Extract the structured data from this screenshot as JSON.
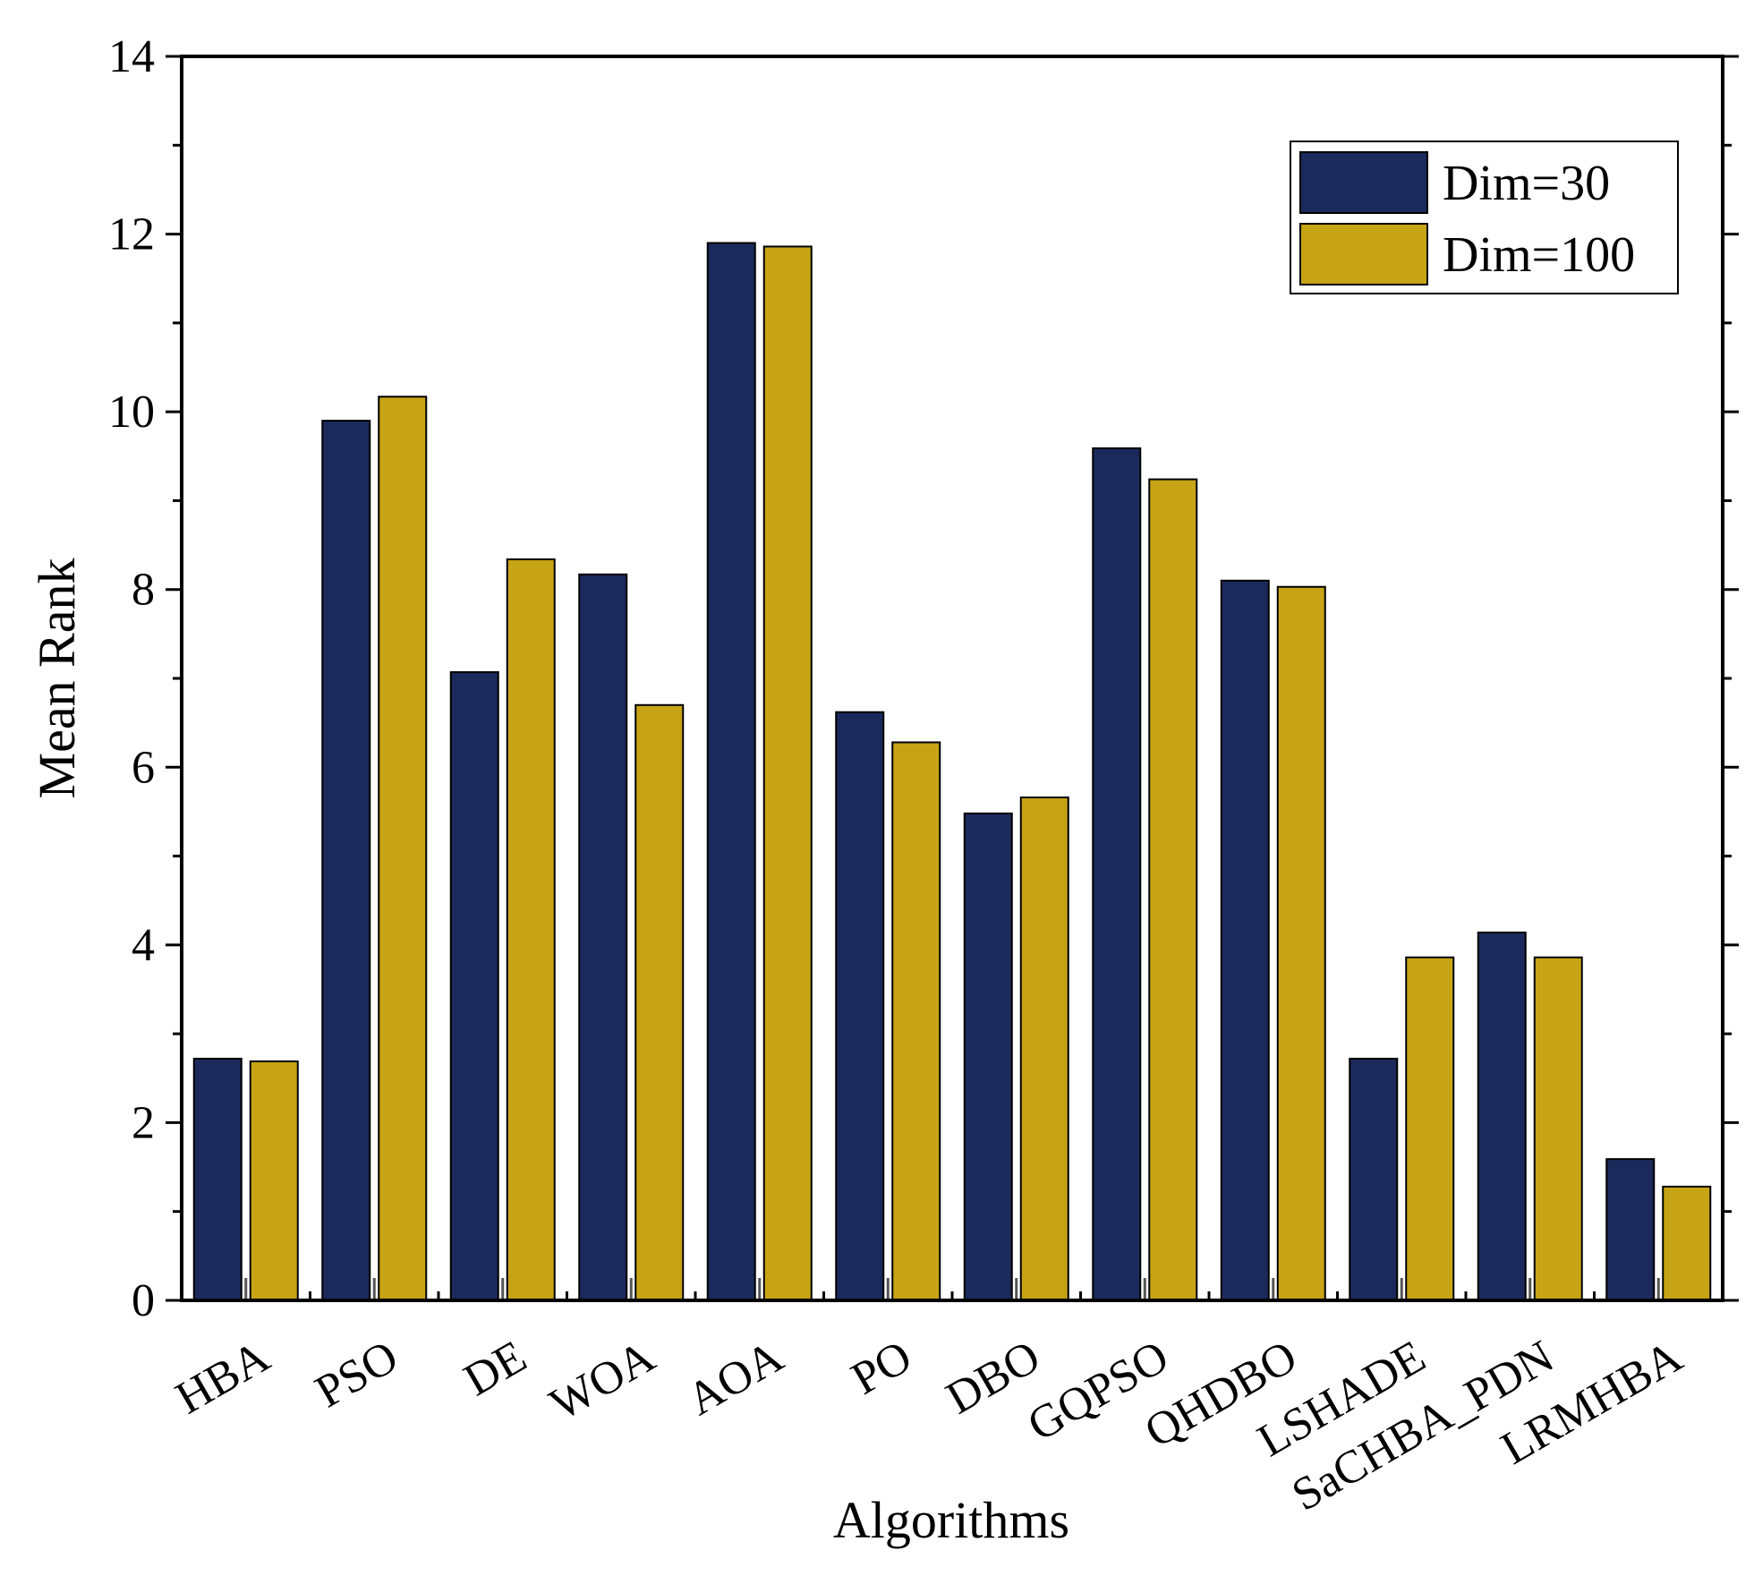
{
  "chart_data": {
    "type": "bar",
    "title": "",
    "xlabel": "Algorithms",
    "ylabel": "Mean Rank",
    "ylim": [
      0,
      14
    ],
    "yticks": [
      0,
      2,
      4,
      6,
      8,
      10,
      12,
      14
    ],
    "legend_position": "top-right",
    "categories": [
      "HBA",
      "PSO",
      "DE",
      "WOA",
      "AOA",
      "PO",
      "DBO",
      "GQPSO",
      "QHDBO",
      "LSHADE",
      "SaCHBA_PDN",
      "LRMHBA"
    ],
    "series": [
      {
        "name": "Dim=30",
        "color": "#1b2a5a",
        "values": [
          2.72,
          9.9,
          7.07,
          8.17,
          11.9,
          6.62,
          5.48,
          9.59,
          8.1,
          2.72,
          4.14,
          1.59
        ]
      },
      {
        "name": "Dim=100",
        "color": "#c6a416",
        "values": [
          2.69,
          10.17,
          8.34,
          6.7,
          11.86,
          6.28,
          5.66,
          9.24,
          8.03,
          3.86,
          3.86,
          1.28
        ]
      }
    ]
  }
}
